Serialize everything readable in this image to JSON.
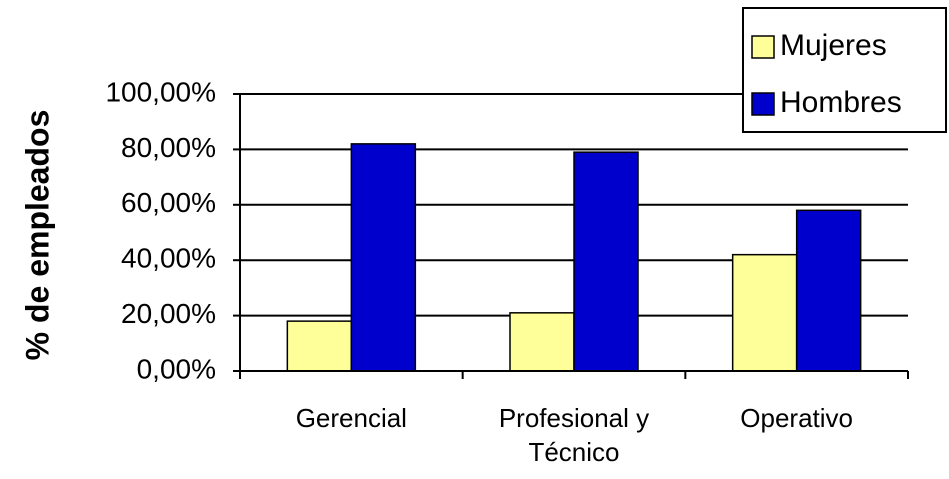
{
  "chart_data": {
    "type": "bar",
    "categories": [
      "Gerencial",
      "Profesional y Técnico",
      "Operativo"
    ],
    "series": [
      {
        "name": "Mujeres",
        "color": "#ffff99",
        "values": [
          18,
          21,
          42
        ]
      },
      {
        "name": "Hombres",
        "color": "#0000cc",
        "values": [
          82,
          79,
          58
        ]
      }
    ],
    "y_label": "% de empleados",
    "ylim": [
      0,
      100
    ],
    "yticks": [
      {
        "value": 0,
        "label": "0,00%"
      },
      {
        "value": 20,
        "label": "20,00%"
      },
      {
        "value": 40,
        "label": "40,00%"
      },
      {
        "value": 60,
        "label": "60,00%"
      },
      {
        "value": 80,
        "label": "80,00%"
      },
      {
        "value": 100,
        "label": "100,00%"
      }
    ],
    "grid": true,
    "legend": "top-right"
  }
}
